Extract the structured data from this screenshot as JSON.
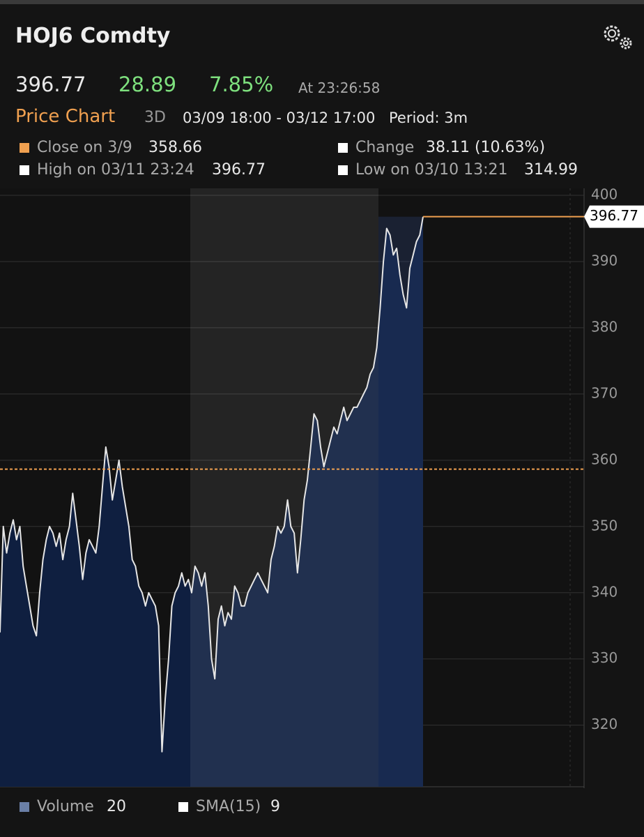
{
  "header": {
    "ticker": "HOJ6 Comdty",
    "last": "396.77",
    "change": "28.89",
    "change_pct": "7.85%",
    "time": "At 23:26:58",
    "chart_title": "Price Chart",
    "range": "3D",
    "dates": "03/09 18:00 - 03/12 17:00",
    "period": "Period: 3m"
  },
  "stats": {
    "close_label": "Close on 3/9",
    "close_value": "358.66",
    "change_label": "Change",
    "change_value": "38.11 (10.63%)",
    "high_label": "High on 03/11 23:24",
    "high_value": "396.77",
    "low_label": "Low on 03/10 13:21",
    "low_value": "314.99"
  },
  "footer": {
    "volume_label": "Volume",
    "volume_value": "20",
    "sma_label": "SMA(15)",
    "sma_value": "9"
  },
  "chart_data": {
    "type": "area",
    "color": "#e6e6e6",
    "fill": "#0f1f40",
    "values": [
      334,
      350,
      346,
      349,
      351,
      348,
      350,
      344,
      341,
      338,
      335,
      333.5,
      340,
      345,
      348,
      350,
      349,
      347,
      349,
      345,
      348,
      350,
      355,
      351,
      347,
      342,
      346,
      348,
      347,
      346,
      350,
      356,
      362,
      359,
      354,
      357,
      360,
      356,
      353,
      350,
      345,
      344,
      341,
      340,
      338,
      340,
      339,
      338,
      335,
      316,
      324,
      330,
      338,
      340,
      341,
      343,
      341,
      342,
      340,
      344,
      343,
      341,
      343,
      338,
      330,
      327,
      336,
      338,
      335,
      337,
      336,
      341,
      340,
      338,
      338,
      340,
      341,
      342,
      343,
      342,
      341,
      340,
      345,
      347,
      350,
      349,
      350,
      354,
      350,
      349,
      343,
      348,
      354,
      357,
      362,
      367,
      366,
      362,
      359,
      361,
      363,
      365,
      364,
      366,
      368,
      366,
      367,
      368,
      368,
      369,
      370,
      371,
      373,
      374,
      377,
      383,
      390,
      395,
      394,
      391,
      392,
      388,
      385,
      383,
      389,
      391,
      393,
      394,
      396.77
    ],
    "reference_line": 358.66,
    "reference_color": "#f0a050",
    "last_price_label": 396.77,
    "ylim": [
      310.7,
      400
    ],
    "yticks": [
      320,
      330,
      340,
      350,
      360,
      370,
      380,
      390,
      400
    ],
    "grid": true
  }
}
